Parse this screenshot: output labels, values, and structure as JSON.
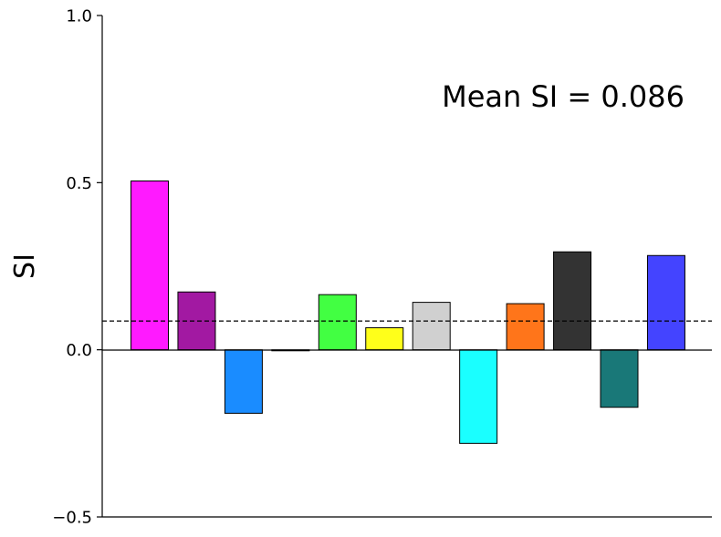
{
  "chart_data": {
    "type": "bar",
    "title": "",
    "xlabel": "",
    "ylabel": "SI",
    "ylim": [
      -0.5,
      1.0
    ],
    "yticks": [
      -0.5,
      0.0,
      0.5,
      1.0
    ],
    "ytick_labels": [
      "−0.5",
      "0.0",
      "0.5",
      "1.0"
    ],
    "grid": false,
    "mean": 0.086,
    "annotation": "Mean SI = 0.086",
    "bars": [
      {
        "value": 0.505,
        "color": "#ff1aff"
      },
      {
        "value": 0.173,
        "color": "#a219a2"
      },
      {
        "value": -0.19,
        "color": "#1a8cff"
      },
      {
        "value": -0.003,
        "color": "#000000"
      },
      {
        "value": 0.165,
        "color": "#42ff42"
      },
      {
        "value": 0.066,
        "color": "#ffff1a"
      },
      {
        "value": 0.142,
        "color": "#d0d0d0"
      },
      {
        "value": -0.28,
        "color": "#1affff"
      },
      {
        "value": 0.138,
        "color": "#ff751a"
      },
      {
        "value": 0.293,
        "color": "#333333"
      },
      {
        "value": -0.172,
        "color": "#197878"
      },
      {
        "value": 0.282,
        "color": "#4444ff"
      }
    ]
  }
}
